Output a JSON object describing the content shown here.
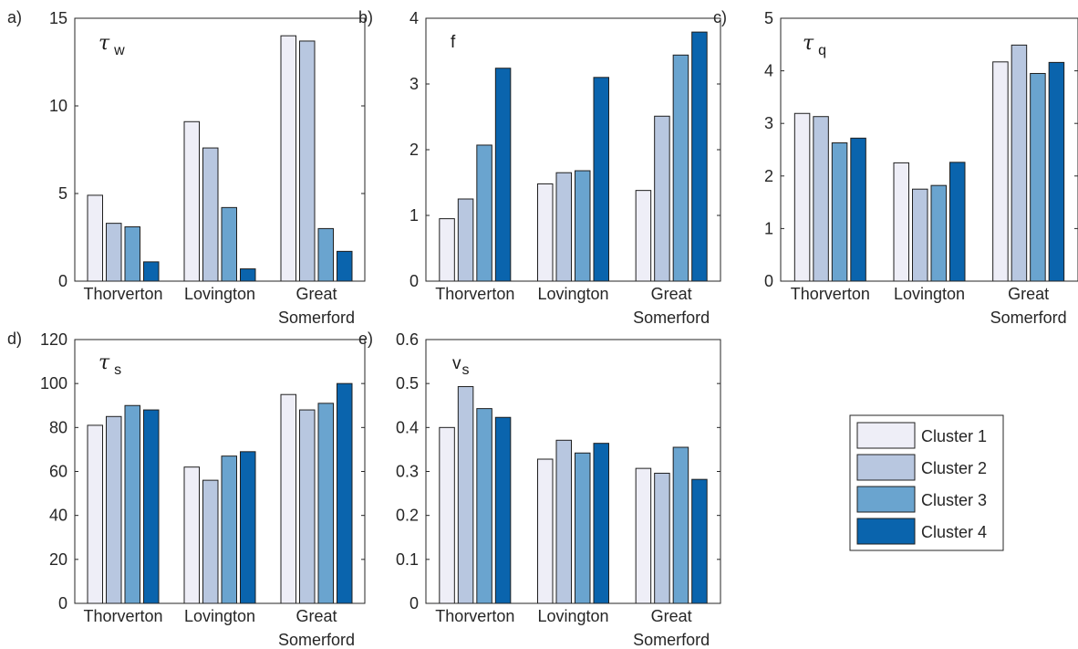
{
  "colors": {
    "series": [
      "#eeeef7",
      "#b8c7e0",
      "#6aa4cf",
      "#0a64ad"
    ],
    "axis": "#262626",
    "bar_edge": "#1f1f1f"
  },
  "legend": {
    "placement": "right",
    "entries": [
      "Cluster 1",
      "Cluster 2",
      "Cluster 3",
      "Cluster 4"
    ]
  },
  "chart_data": [
    {
      "type": "bar",
      "panel_label": "a)",
      "annotation": {
        "symbol": "τ",
        "subscript": "w"
      },
      "categories": [
        [
          "Thorverton"
        ],
        [
          "Lovington"
        ],
        [
          "Great",
          "Somerford"
        ]
      ],
      "ylim": [
        0,
        15
      ],
      "yticks": [
        "0",
        "5",
        "10",
        "15"
      ],
      "series": [
        {
          "name": "Cluster 1",
          "values": [
            4.9,
            9.1,
            14.0
          ]
        },
        {
          "name": "Cluster 2",
          "values": [
            3.3,
            7.6,
            13.7
          ]
        },
        {
          "name": "Cluster 3",
          "values": [
            3.1,
            4.2,
            3.0
          ]
        },
        {
          "name": "Cluster 4",
          "values": [
            1.1,
            0.7,
            1.7
          ]
        }
      ]
    },
    {
      "type": "bar",
      "panel_label": "b)",
      "annotation": {
        "symbol": "f",
        "subscript": ""
      },
      "categories": [
        [
          "Thorverton"
        ],
        [
          "Lovington"
        ],
        [
          "Great",
          "Somerford"
        ]
      ],
      "ylim": [
        0,
        4
      ],
      "yticks": [
        "0",
        "1",
        "2",
        "3",
        "4"
      ],
      "series": [
        {
          "name": "Cluster 1",
          "values": [
            0.95,
            1.48,
            1.38
          ]
        },
        {
          "name": "Cluster 2",
          "values": [
            1.25,
            1.65,
            2.51
          ]
        },
        {
          "name": "Cluster 3",
          "values": [
            2.07,
            1.68,
            3.44
          ]
        },
        {
          "name": "Cluster 4",
          "values": [
            3.24,
            3.1,
            3.79
          ]
        }
      ]
    },
    {
      "type": "bar",
      "panel_label": "c)",
      "annotation": {
        "symbol": "τ",
        "subscript": "q"
      },
      "categories": [
        [
          "Thorverton"
        ],
        [
          "Lovington"
        ],
        [
          "Great",
          "Somerford"
        ]
      ],
      "ylim": [
        0,
        5
      ],
      "yticks": [
        "0",
        "1",
        "2",
        "3",
        "4",
        "5"
      ],
      "series": [
        {
          "name": "Cluster 1",
          "values": [
            3.19,
            2.25,
            4.17
          ]
        },
        {
          "name": "Cluster 2",
          "values": [
            3.13,
            1.75,
            4.49
          ]
        },
        {
          "name": "Cluster 3",
          "values": [
            2.63,
            1.82,
            3.95
          ]
        },
        {
          "name": "Cluster 4",
          "values": [
            2.72,
            2.26,
            4.16
          ]
        }
      ]
    },
    {
      "type": "bar",
      "panel_label": "d)",
      "annotation": {
        "symbol": "τ",
        "subscript": "s"
      },
      "categories": [
        [
          "Thorverton"
        ],
        [
          "Lovington"
        ],
        [
          "Great",
          "Somerford"
        ]
      ],
      "ylim": [
        0,
        120
      ],
      "yticks": [
        "0",
        "20",
        "40",
        "60",
        "80",
        "100",
        "120"
      ],
      "series": [
        {
          "name": "Cluster 1",
          "values": [
            81,
            62,
            95
          ]
        },
        {
          "name": "Cluster 2",
          "values": [
            85,
            56,
            88
          ]
        },
        {
          "name": "Cluster 3",
          "values": [
            90,
            67,
            91
          ]
        },
        {
          "name": "Cluster 4",
          "values": [
            88,
            69,
            100
          ]
        }
      ]
    },
    {
      "type": "bar",
      "panel_label": "e)",
      "annotation": {
        "symbol": "v",
        "subscript": "s"
      },
      "categories": [
        [
          "Thorverton"
        ],
        [
          "Lovington"
        ],
        [
          "Great",
          "Somerford"
        ]
      ],
      "ylim": [
        0,
        0.6
      ],
      "yticks": [
        "0",
        "0.1",
        "0.2",
        "0.3",
        "0.4",
        "0.5",
        "0.6"
      ],
      "series": [
        {
          "name": "Cluster 1",
          "values": [
            0.4,
            0.328,
            0.307
          ]
        },
        {
          "name": "Cluster 2",
          "values": [
            0.493,
            0.371,
            0.296
          ]
        },
        {
          "name": "Cluster 3",
          "values": [
            0.443,
            0.342,
            0.355
          ]
        },
        {
          "name": "Cluster 4",
          "values": [
            0.423,
            0.364,
            0.282
          ]
        }
      ]
    }
  ]
}
